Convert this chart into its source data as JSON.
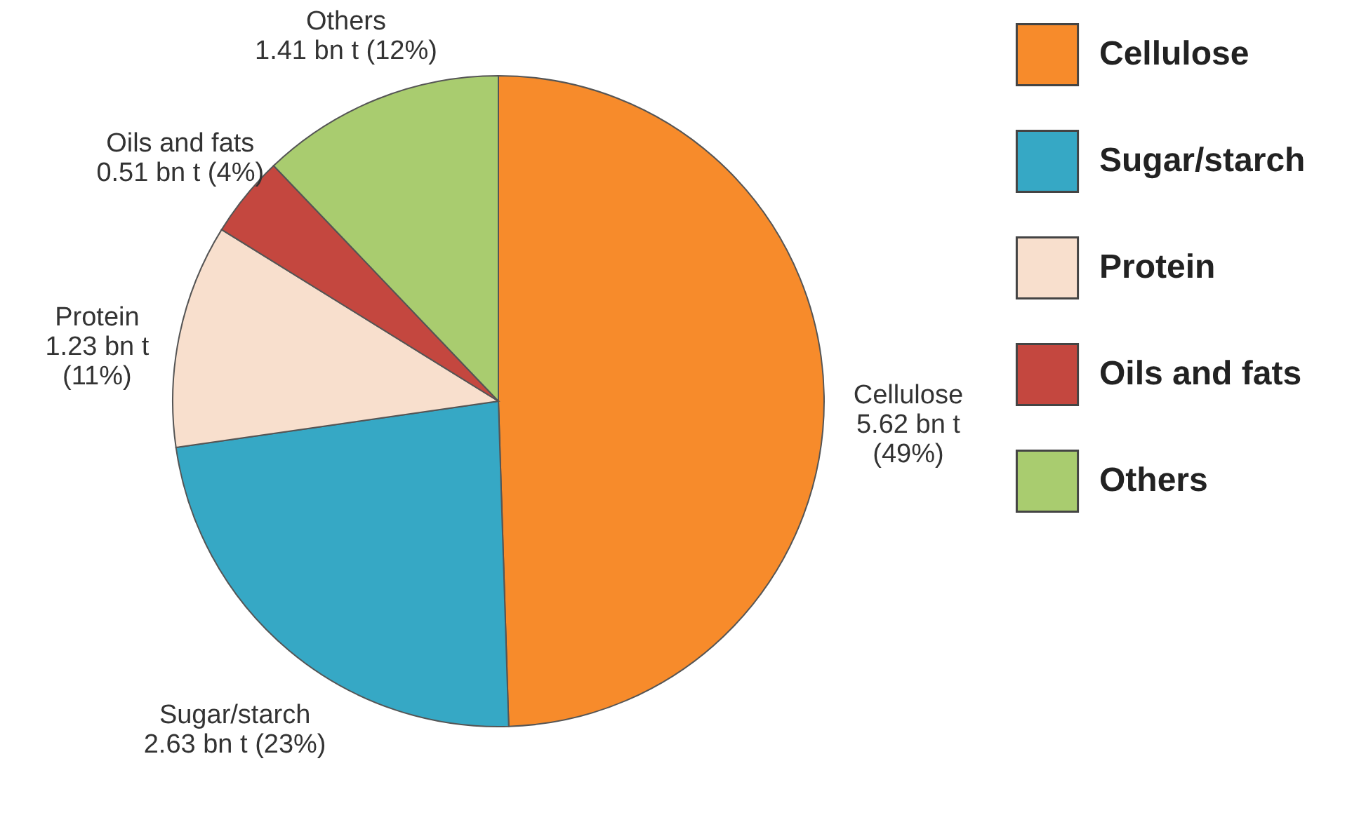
{
  "chart_data": {
    "type": "pie",
    "categories": [
      "Cellulose",
      "Sugar/starch",
      "Protein",
      "Oils and fats",
      "Others"
    ],
    "values": [
      49,
      23,
      11,
      4,
      12
    ],
    "value_labels": [
      "5.62 bn t\n(49%)",
      "2.63 bn t (23%)",
      "1.23 bn t\n(11%)",
      "0.51 bn t (4%)",
      "1.41 bn t (12%)"
    ],
    "colors": [
      "#f78b2b",
      "#36a8c5",
      "#f8dfcd",
      "#c4473f",
      "#a9cc6f"
    ],
    "legend": "right"
  }
}
